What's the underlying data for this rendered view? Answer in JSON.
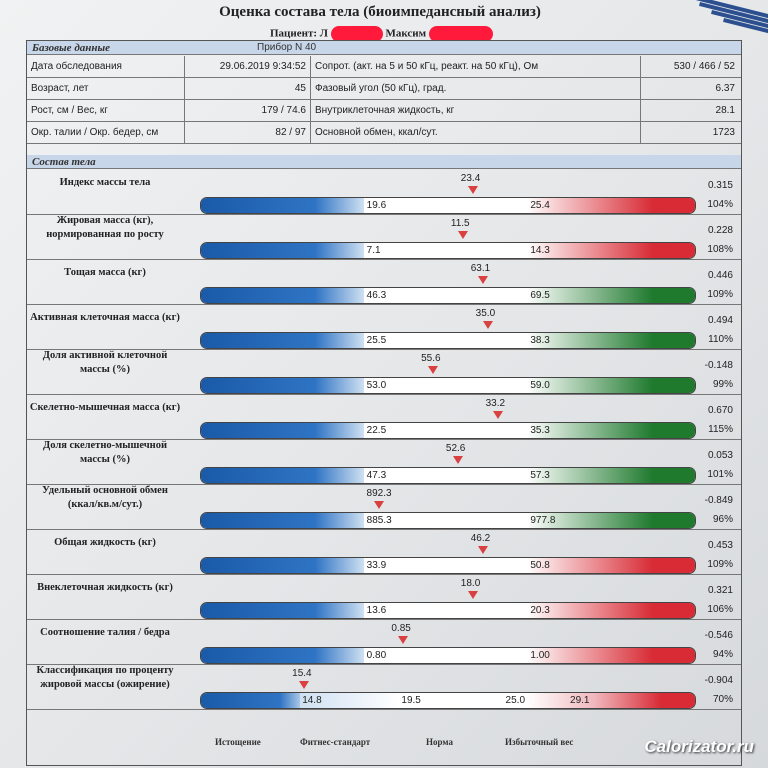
{
  "document": {
    "title": "Оценка состава тела (биоимпедансный анализ)",
    "patient_label": "Пациент: Л",
    "patient_name_part": "Максим"
  },
  "base_section": {
    "header": "Базовые данные",
    "device": "Прибор N 40",
    "rows": [
      {
        "label": "Дата обследования",
        "value": "29.06.2019 9:34:52",
        "label2": "Сопрот. (акт. на 5 и 50 кГц, реакт. на 50 кГц), Ом",
        "value2": "530 / 466 / 52"
      },
      {
        "label": "Возраст, лет",
        "value": "45",
        "label2": "Фазовый угол (50 кГц), град.",
        "value2": "6.37"
      },
      {
        "label": "Рост, см / Вес, кг",
        "value": "179 / 74.6",
        "label2": "Внутриклеточная жидкость, кг",
        "value2": "28.1"
      },
      {
        "label": "Окр. талии / Окр. бедер, см",
        "value": "82 / 97",
        "label2": "Основной обмен, ккал/сут.",
        "value2": "1723"
      }
    ]
  },
  "composition_section": {
    "header": "Состав тела",
    "rows": [
      {
        "label": "Индекс массы тела",
        "value": "23.4",
        "marker_pos": 0.55,
        "low": "19.6",
        "high": "25.4",
        "score": "0.315",
        "percent": "104%",
        "right_color": "red"
      },
      {
        "label": "Жировая масса (кг), нормированная по росту",
        "value": "11.5",
        "marker_pos": 0.53,
        "low": "7.1",
        "high": "14.3",
        "score": "0.228",
        "percent": "108%",
        "right_color": "red"
      },
      {
        "label": "Тощая масса (кг)",
        "value": "63.1",
        "marker_pos": 0.57,
        "low": "46.3",
        "high": "69.5",
        "score": "0.446",
        "percent": "109%",
        "right_color": "green"
      },
      {
        "label": "Активная клеточная масса (кг)",
        "value": "35.0",
        "marker_pos": 0.58,
        "low": "25.5",
        "high": "38.3",
        "score": "0.494",
        "percent": "110%",
        "right_color": "green"
      },
      {
        "label": "Доля активной клеточной массы (%)",
        "value": "55.6",
        "marker_pos": 0.47,
        "low": "53.0",
        "high": "59.0",
        "score": "-0.148",
        "percent": "99%",
        "right_color": "green"
      },
      {
        "label": "Скелетно-мышечная масса (кг)",
        "value": "33.2",
        "marker_pos": 0.6,
        "low": "22.5",
        "high": "35.3",
        "score": "0.670",
        "percent": "115%",
        "right_color": "green"
      },
      {
        "label": "Доля скелетно-мышечной массы (%)",
        "value": "52.6",
        "marker_pos": 0.52,
        "low": "47.3",
        "high": "57.3",
        "score": "0.053",
        "percent": "101%",
        "right_color": "green"
      },
      {
        "label": "Удельный основной обмен (ккал/кв.м/сут.)",
        "value": "892.3",
        "marker_pos": 0.36,
        "low": "885.3",
        "high": "977.8",
        "score": "-0.849",
        "percent": "96%",
        "right_color": "green"
      },
      {
        "label": "Общая жидкость (кг)",
        "value": "46.2",
        "marker_pos": 0.57,
        "low": "33.9",
        "high": "50.8",
        "score": "0.453",
        "percent": "109%",
        "right_color": "red"
      },
      {
        "label": "Внеклеточная жидкость (кг)",
        "value": "18.0",
        "marker_pos": 0.55,
        "low": "13.6",
        "high": "20.3",
        "score": "0.321",
        "percent": "106%",
        "right_color": "red"
      },
      {
        "label": "Соотношение талия / бедра",
        "value": "0.85",
        "marker_pos": 0.41,
        "low": "0.80",
        "high": "1.00",
        "score": "-0.546",
        "percent": "94%",
        "right_color": "red"
      },
      {
        "label": "Классификация по проценту жировой массы (ожирение)",
        "value": "15.4",
        "marker_pos": 0.21,
        "low": "14.8",
        "high": "25.0",
        "extra_mid": "19.5",
        "extra_high": "29.1",
        "score": "-0.904",
        "percent": "70%",
        "right_color": "red"
      }
    ],
    "categories": [
      "Истощение",
      "Фитнес-стандарт",
      "Норма",
      "Избыточный вес"
    ]
  },
  "watermark": "Calorizator.ru",
  "colors": {
    "blue": "#1a5aa8",
    "green": "#1f7a2e",
    "red": "#d82b35",
    "header_bg": "#c8d6ea"
  }
}
